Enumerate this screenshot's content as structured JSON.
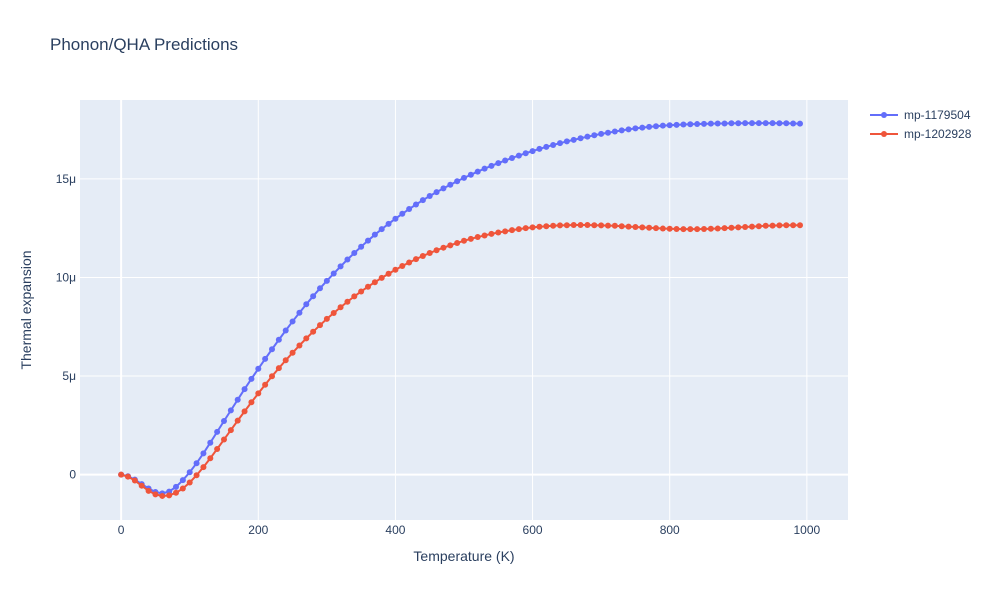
{
  "chart_data": {
    "type": "line",
    "title": "Phonon/QHA Predictions",
    "xlabel": "Temperature (K)",
    "ylabel": "Thermal expansion",
    "xlim": [
      -60,
      1060
    ],
    "ylim": [
      -2.3e-06,
      1.9e-05
    ],
    "x_ticks": [
      {
        "value": 0,
        "label": "0"
      },
      {
        "value": 200,
        "label": "200"
      },
      {
        "value": 400,
        "label": "400"
      },
      {
        "value": 600,
        "label": "600"
      },
      {
        "value": 800,
        "label": "800"
      },
      {
        "value": 1000,
        "label": "1000"
      }
    ],
    "y_ticks": [
      {
        "value": 0,
        "label": "0"
      },
      {
        "value": 5e-06,
        "label": "5μ"
      },
      {
        "value": 1e-05,
        "label": "10μ"
      },
      {
        "value": 1.5e-05,
        "label": "15μ"
      }
    ],
    "grid": true,
    "legend_position": "top-right",
    "x": [
      0,
      10,
      20,
      30,
      40,
      50,
      60,
      70,
      80,
      90,
      100,
      110,
      120,
      130,
      140,
      150,
      160,
      170,
      180,
      190,
      200,
      210,
      220,
      230,
      240,
      250,
      260,
      270,
      280,
      290,
      300,
      310,
      320,
      330,
      340,
      350,
      360,
      370,
      380,
      390,
      400,
      410,
      420,
      430,
      440,
      450,
      460,
      470,
      480,
      490,
      500,
      510,
      520,
      530,
      540,
      550,
      560,
      570,
      580,
      590,
      600,
      610,
      620,
      630,
      640,
      650,
      660,
      670,
      680,
      690,
      700,
      710,
      720,
      730,
      740,
      750,
      760,
      770,
      780,
      790,
      800,
      810,
      820,
      830,
      840,
      850,
      860,
      870,
      880,
      890,
      900,
      910,
      920,
      930,
      940,
      950,
      960,
      970,
      980,
      990
    ],
    "series": [
      {
        "name": "mp-1179504",
        "color": "#636efa",
        "values": [
          0,
          -0.08,
          -0.25,
          -0.48,
          -0.7,
          -0.88,
          -0.95,
          -0.86,
          -0.62,
          -0.28,
          0.12,
          0.58,
          1.08,
          1.62,
          2.17,
          2.72,
          3.26,
          3.8,
          4.34,
          4.86,
          5.37,
          5.87,
          6.36,
          6.84,
          7.31,
          7.77,
          8.21,
          8.64,
          9.05,
          9.45,
          9.83,
          10.2,
          10.56,
          10.91,
          11.24,
          11.56,
          11.87,
          12.17,
          12.45,
          12.72,
          12.98,
          13.23,
          13.47,
          13.7,
          13.92,
          14.13,
          14.33,
          14.52,
          14.7,
          14.88,
          15.05,
          15.21,
          15.37,
          15.52,
          15.66,
          15.8,
          15.93,
          16.06,
          16.18,
          16.3,
          16.41,
          16.52,
          16.62,
          16.72,
          16.81,
          16.9,
          16.98,
          17.06,
          17.14,
          17.21,
          17.28,
          17.34,
          17.4,
          17.46,
          17.51,
          17.56,
          17.6,
          17.64,
          17.67,
          17.7,
          17.72,
          17.74,
          17.76,
          17.77,
          17.78,
          17.79,
          17.8,
          17.81,
          17.81,
          17.82,
          17.82,
          17.83,
          17.83,
          17.83,
          17.83,
          17.83,
          17.82,
          17.82,
          17.81,
          17.8
        ]
      },
      {
        "name": "mp-1202928",
        "color": "#ef553b",
        "values": [
          0,
          -0.1,
          -0.3,
          -0.56,
          -0.82,
          -1.0,
          -1.08,
          -1.05,
          -0.92,
          -0.7,
          -0.4,
          -0.03,
          0.38,
          0.83,
          1.3,
          1.78,
          2.26,
          2.74,
          3.21,
          3.67,
          4.12,
          4.56,
          4.99,
          5.4,
          5.8,
          6.18,
          6.55,
          6.91,
          7.25,
          7.58,
          7.9,
          8.2,
          8.49,
          8.77,
          9.04,
          9.29,
          9.53,
          9.76,
          9.98,
          10.19,
          10.39,
          10.58,
          10.76,
          10.93,
          11.09,
          11.24,
          11.38,
          11.51,
          11.63,
          11.75,
          11.86,
          11.96,
          12.05,
          12.13,
          12.21,
          12.28,
          12.34,
          12.4,
          12.45,
          12.5,
          12.54,
          12.57,
          12.6,
          12.62,
          12.64,
          12.65,
          12.66,
          12.66,
          12.66,
          12.65,
          12.64,
          12.63,
          12.62,
          12.6,
          12.58,
          12.56,
          12.54,
          12.52,
          12.5,
          12.48,
          12.47,
          12.46,
          12.45,
          12.45,
          12.45,
          12.46,
          12.47,
          12.48,
          12.5,
          12.52,
          12.54,
          12.56,
          12.58,
          12.6,
          12.62,
          12.63,
          12.64,
          12.65,
          12.65,
          12.65
        ]
      }
    ]
  }
}
